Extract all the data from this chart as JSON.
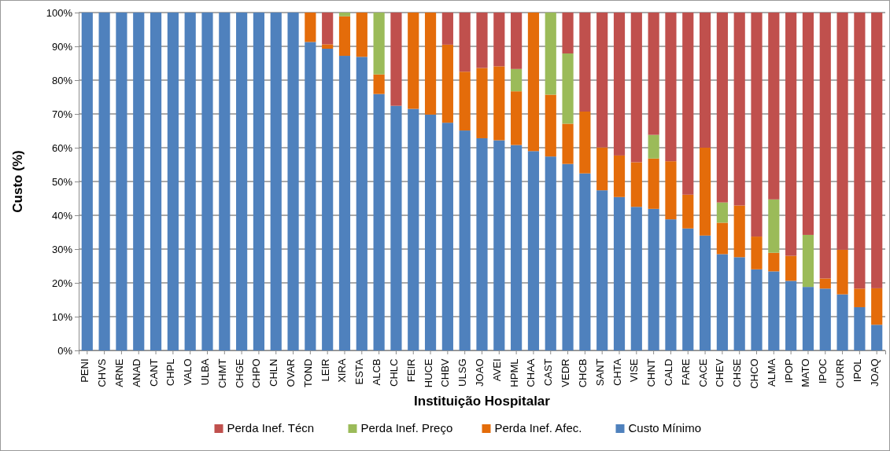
{
  "chart_data": {
    "type": "bar",
    "stacked": true,
    "xlabel": "Instituição Hospitalar",
    "ylabel": "Custo (%)",
    "categories": [
      "PENI",
      "CHVS",
      "ARNE",
      "ANAD",
      "CANT",
      "CHPL",
      "VALO",
      "ULBA",
      "CHMT",
      "CHGE",
      "CHPO",
      "CHLN",
      "OVAR",
      "TOND",
      "LEIR",
      "XIRA",
      "ESTA",
      "ALCB",
      "CHLC",
      "FEIR",
      "HUCE",
      "CHBV",
      "ULSG",
      "JOAO",
      "AVEI",
      "HPML",
      "CHAA",
      "CAST",
      "VEDR",
      "CHCB",
      "SANT",
      "CHTA",
      "VISE",
      "CHNT",
      "CALD",
      "FARE",
      "CACE",
      "CHEV",
      "CHSE",
      "CHCO",
      "ALMA",
      "IPOP",
      "MATO",
      "IPOC",
      "CURR",
      "IPOL",
      "JOAQ"
    ],
    "series": [
      {
        "name": "Custo Mínimo",
        "color": "#4f81bd",
        "values": [
          100,
          100,
          100,
          100,
          100,
          100,
          100,
          100,
          100,
          100,
          100,
          100,
          100,
          91.3,
          89.3,
          87.2,
          86.9,
          75.9,
          72.4,
          71.5,
          69.8,
          67.4,
          65.1,
          62.8,
          62.2,
          60.8,
          59.0,
          57.4,
          55.2,
          52.4,
          47.4,
          45.4,
          42.5,
          41.9,
          38.8,
          36.1,
          34.0,
          28.5,
          27.6,
          24.0,
          23.4,
          20.6,
          18.8,
          18.3,
          16.6,
          12.8,
          7.6
        ]
      },
      {
        "name": "Perda Inef. Afec.",
        "color": "#e46c0a",
        "values": [
          0,
          0,
          0,
          0,
          0,
          0,
          0,
          0,
          0,
          0,
          0,
          0,
          0,
          8.7,
          1.3,
          11.7,
          13.1,
          5.8,
          0,
          28.5,
          30.2,
          23.1,
          17.4,
          20.8,
          21.9,
          15.9,
          41.0,
          18.3,
          11.9,
          18.3,
          12.7,
          12.3,
          13.2,
          14.9,
          17.2,
          10.0,
          26.0,
          9.3,
          15.3,
          9.7,
          5.5,
          7.4,
          0,
          3.0,
          13.2,
          5.5,
          10.8
        ]
      },
      {
        "name": "Perda Inef. Preço",
        "color": "#9bbb59",
        "values": [
          0,
          0,
          0,
          0,
          0,
          0,
          0,
          0,
          0,
          0,
          0,
          0,
          0,
          0,
          0,
          1.1,
          0,
          18.3,
          0,
          0,
          0,
          0,
          0,
          0,
          0,
          6.6,
          0,
          24.3,
          20.8,
          0,
          0,
          0,
          0,
          7.0,
          0,
          0,
          0,
          6.0,
          0,
          0,
          15.8,
          0,
          15.4,
          0,
          0,
          0,
          0
        ]
      },
      {
        "name": "Perda Inef. Técn",
        "color": "#c0504d",
        "values": [
          0,
          0,
          0,
          0,
          0,
          0,
          0,
          0,
          0,
          0,
          0,
          0,
          0,
          0,
          9.4,
          0,
          0,
          0,
          27.6,
          0,
          0,
          9.5,
          17.5,
          16.4,
          15.9,
          16.7,
          0,
          0,
          12.1,
          29.3,
          39.9,
          42.3,
          44.3,
          36.2,
          44.0,
          53.9,
          40.0,
          56.2,
          57.1,
          66.3,
          55.3,
          72.0,
          65.8,
          78.7,
          70.2,
          81.7,
          81.6
        ]
      }
    ],
    "ylim": [
      0,
      100
    ],
    "yticks": [
      {
        "value": 0,
        "label": "0%"
      },
      {
        "value": 10,
        "label": "10%"
      },
      {
        "value": 20,
        "label": "20%"
      },
      {
        "value": 30,
        "label": "30%"
      },
      {
        "value": 40,
        "label": "40%"
      },
      {
        "value": 50,
        "label": "50%"
      },
      {
        "value": 60,
        "label": "60%"
      },
      {
        "value": 70,
        "label": "70%"
      },
      {
        "value": 80,
        "label": "80%"
      },
      {
        "value": 90,
        "label": "90%"
      },
      {
        "value": 100,
        "label": "100%"
      }
    ],
    "grid": "y",
    "legend": "bottom"
  }
}
